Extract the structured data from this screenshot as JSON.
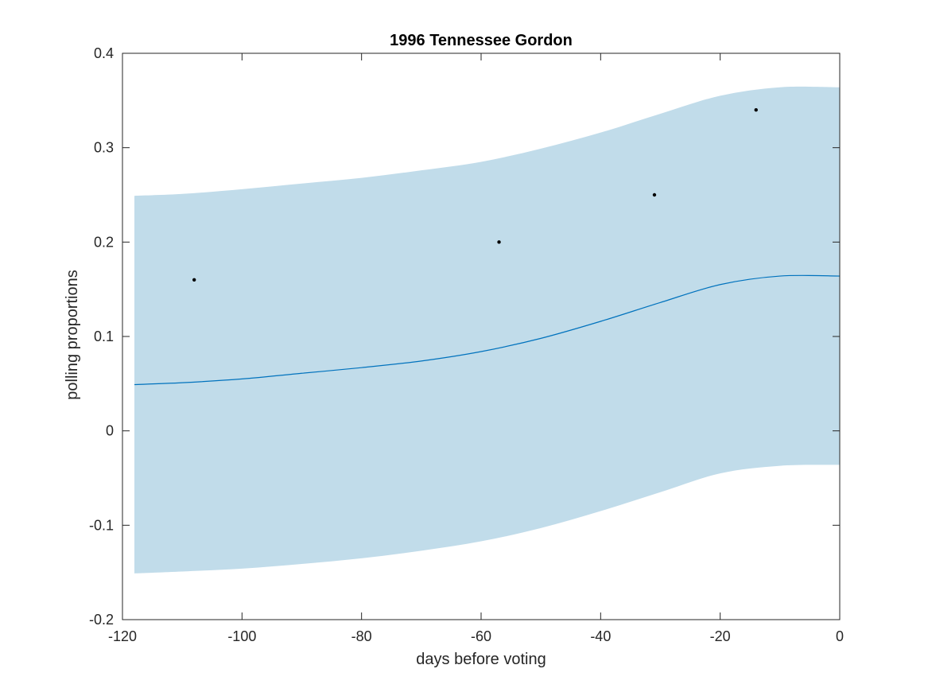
{
  "chart_data": {
    "type": "line",
    "title": "1996 Tennessee Gordon",
    "xlabel": "days before voting",
    "ylabel": "polling proportions",
    "xlim": [
      -120,
      0
    ],
    "ylim": [
      -0.2,
      0.4
    ],
    "xticks": [
      -120,
      -100,
      -80,
      -60,
      -40,
      -20,
      0
    ],
    "yticks": [
      -0.2,
      -0.1,
      0,
      0.1,
      0.2,
      0.3,
      0.4
    ],
    "xtick_labels": [
      "-120",
      "-100",
      "-80",
      "-60",
      "-40",
      "-20",
      "0"
    ],
    "ytick_labels": [
      "-0.2",
      "-0.1",
      "0",
      "0.1",
      "0.2",
      "0.3",
      "0.4"
    ],
    "grid": false,
    "series": [
      {
        "kind": "band",
        "color": "#c1dcea",
        "x": [
          -118,
          -110,
          -100,
          -90,
          -80,
          -70,
          -60,
          -50,
          -40,
          -30,
          -20,
          -10,
          0
        ],
        "lower": [
          -0.151,
          -0.149,
          -0.146,
          -0.141,
          -0.135,
          -0.127,
          -0.117,
          -0.103,
          -0.085,
          -0.065,
          -0.045,
          -0.037,
          -0.036
        ],
        "upper": [
          0.249,
          0.251,
          0.256,
          0.262,
          0.268,
          0.276,
          0.285,
          0.299,
          0.316,
          0.336,
          0.355,
          0.364,
          0.364
        ]
      },
      {
        "kind": "line",
        "color": "#0072bd",
        "x": [
          -118,
          -110,
          -100,
          -90,
          -80,
          -70,
          -60,
          -50,
          -40,
          -30,
          -20,
          -10,
          0
        ],
        "y": [
          0.049,
          0.051,
          0.055,
          0.061,
          0.067,
          0.074,
          0.084,
          0.098,
          0.116,
          0.136,
          0.155,
          0.164,
          0.164
        ]
      },
      {
        "kind": "scatter",
        "color": "#000000",
        "x": [
          -108,
          -57,
          -31,
          -14
        ],
        "y": [
          0.16,
          0.2,
          0.25,
          0.34
        ]
      }
    ]
  }
}
